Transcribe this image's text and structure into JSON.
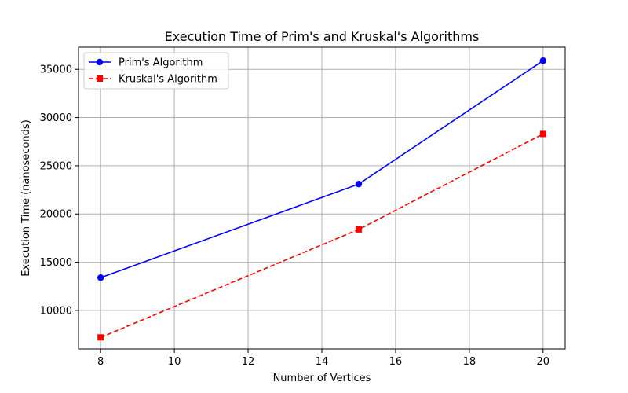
{
  "chart_data": {
    "type": "line",
    "title": "Execution Time of Prim's and Kruskal's Algorithms",
    "xlabel": "Number of Vertices",
    "ylabel": "Execution Time (nanoseconds)",
    "x": [
      8,
      15,
      20
    ],
    "xlim": [
      7.4,
      20.6
    ],
    "ylim": [
      6000,
      37300
    ],
    "xticks": [
      8,
      10,
      12,
      14,
      16,
      18,
      20
    ],
    "yticks": [
      10000,
      15000,
      20000,
      25000,
      30000,
      35000
    ],
    "grid": true,
    "legend_position": "top-left",
    "series": [
      {
        "name": "Prim's Algorithm",
        "values": [
          13400,
          23100,
          35900
        ],
        "color": "#0000ff",
        "line_style": "solid",
        "marker": "circle"
      },
      {
        "name": "Kruskal's Algorithm",
        "values": [
          7200,
          18400,
          28300
        ],
        "color": "#ff0000",
        "line_style": "dashed",
        "marker": "square"
      }
    ]
  }
}
